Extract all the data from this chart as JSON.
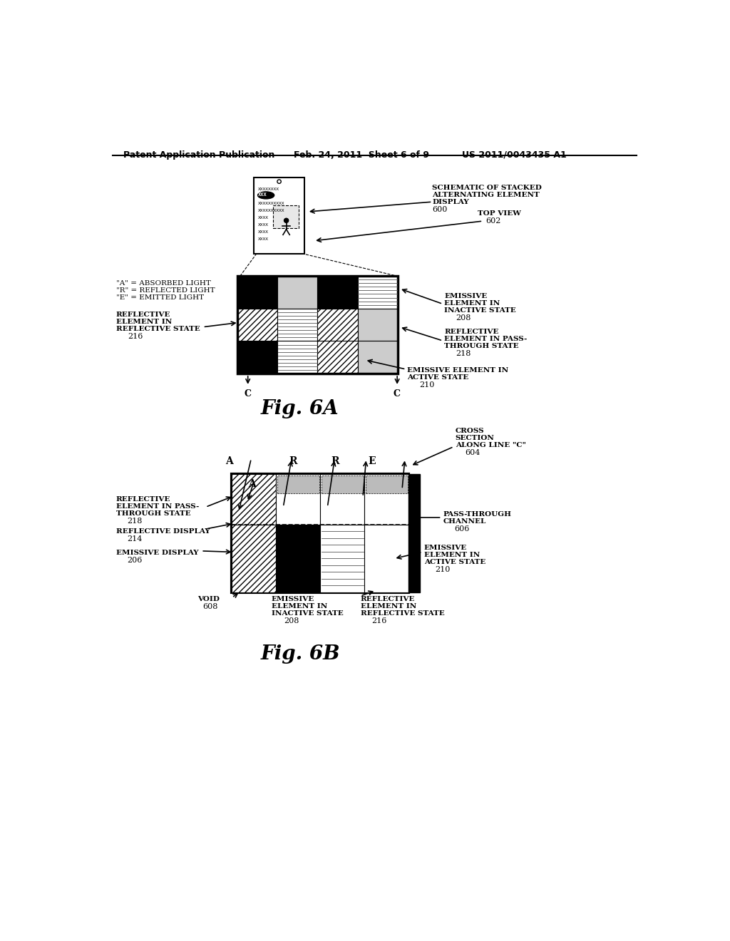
{
  "header_left": "Patent Application Publication",
  "header_mid": "Feb. 24, 2011  Sheet 6 of 9",
  "header_right": "US 2011/0043435 A1",
  "fig6a_label": "Fig. 6A",
  "fig6b_label": "Fig. 6B",
  "background": "#ffffff",
  "text_color": "#000000"
}
